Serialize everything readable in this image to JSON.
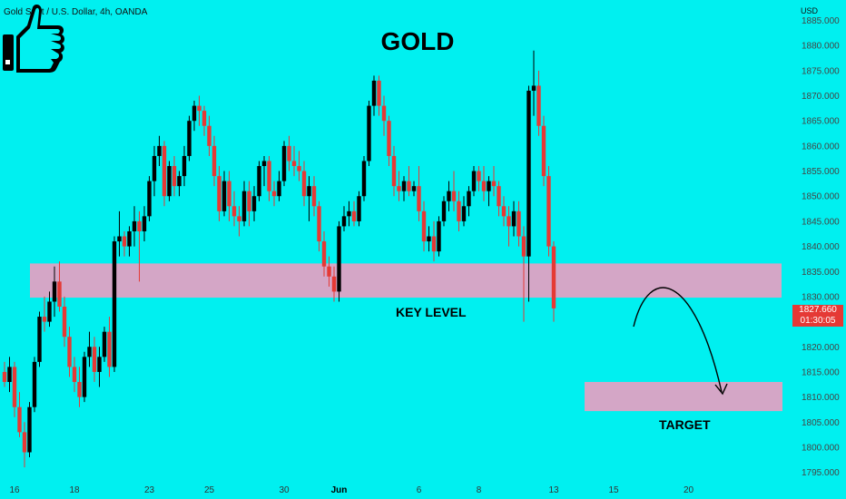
{
  "header": {
    "symbol_text": "Gold Spot / U.S. Dollar, 4h, OANDA",
    "currency": "USD",
    "main_title": "GOLD"
  },
  "price_tag": {
    "price": "1827.660",
    "countdown": "01:30:05"
  },
  "annotations": {
    "key_level": "KEY LEVEL",
    "target": "TARGET"
  },
  "icons": {
    "thumb": "thumbs-up-icon"
  },
  "colors": {
    "background": "#00f0f0",
    "bull": "#000000",
    "bear": "#e53935",
    "zone": "#d4a6c6"
  },
  "chart_data": {
    "type": "candlestick",
    "symbol": "Gold Spot / U.S. Dollar",
    "timeframe": "4h",
    "source": "OANDA",
    "title": "GOLD",
    "ylim": [
      1794,
      1886
    ],
    "y_ticks": [
      1885,
      1880,
      1875,
      1870,
      1865,
      1860,
      1855,
      1850,
      1845,
      1840,
      1835,
      1830,
      1825,
      1820,
      1815,
      1810,
      1805,
      1800,
      1795
    ],
    "x_ticks": [
      {
        "label": "16",
        "bar": 2
      },
      {
        "label": "18",
        "bar": 14
      },
      {
        "label": "23",
        "bar": 29
      },
      {
        "label": "25",
        "bar": 41
      },
      {
        "label": "30",
        "bar": 56
      },
      {
        "label": "Jun",
        "bar": 67,
        "bold": true
      },
      {
        "label": "6",
        "bar": 83
      },
      {
        "label": "8",
        "bar": 95
      },
      {
        "label": "13",
        "bar": 110
      },
      {
        "label": "15",
        "bar": 122
      },
      {
        "label": "20",
        "bar": 137
      }
    ],
    "zones": [
      {
        "name": "KEY LEVEL",
        "from": 1829.8,
        "to": 1836.6
      },
      {
        "name": "TARGET",
        "from": 1807.2,
        "to": 1813.0
      }
    ],
    "last_price": 1827.66,
    "candles": [
      [
        1815,
        1817,
        1812,
        1813
      ],
      [
        1813,
        1818,
        1811,
        1816
      ],
      [
        1816,
        1817,
        1806,
        1808
      ],
      [
        1808,
        1811,
        1802,
        1803
      ],
      [
        1803,
        1805,
        1796,
        1799
      ],
      [
        1799,
        1809,
        1798,
        1808
      ],
      [
        1808,
        1818,
        1807,
        1817
      ],
      [
        1817,
        1827,
        1816,
        1826
      ],
      [
        1826,
        1830,
        1823,
        1825
      ],
      [
        1825,
        1831,
        1824,
        1829
      ],
      [
        1829,
        1836,
        1826,
        1833
      ],
      [
        1833,
        1837,
        1827,
        1828
      ],
      [
        1828,
        1830,
        1820,
        1822
      ],
      [
        1822,
        1824,
        1814,
        1816
      ],
      [
        1816,
        1818,
        1811,
        1813
      ],
      [
        1813,
        1816,
        1808,
        1810
      ],
      [
        1810,
        1819,
        1809,
        1818
      ],
      [
        1818,
        1823,
        1816,
        1820
      ],
      [
        1820,
        1822,
        1813,
        1815
      ],
      [
        1815,
        1820,
        1812,
        1818
      ],
      [
        1818,
        1824,
        1817,
        1823
      ],
      [
        1823,
        1826,
        1814,
        1816
      ],
      [
        1816,
        1842,
        1815,
        1841
      ],
      [
        1841,
        1847,
        1838,
        1842
      ],
      [
        1842,
        1843,
        1838,
        1840
      ],
      [
        1840,
        1844,
        1838,
        1843
      ],
      [
        1843,
        1848,
        1840,
        1845
      ],
      [
        1845,
        1847,
        1833,
        1843
      ],
      [
        1843,
        1848,
        1841,
        1846
      ],
      [
        1846,
        1854,
        1845,
        1853
      ],
      [
        1853,
        1860,
        1850,
        1858
      ],
      [
        1858,
        1862,
        1856,
        1860
      ],
      [
        1860,
        1861,
        1848,
        1850
      ],
      [
        1850,
        1857,
        1849,
        1856
      ],
      [
        1856,
        1858,
        1850,
        1852
      ],
      [
        1852,
        1855,
        1850,
        1854
      ],
      [
        1854,
        1860,
        1852,
        1858
      ],
      [
        1858,
        1866,
        1857,
        1865
      ],
      [
        1865,
        1869,
        1863,
        1868
      ],
      [
        1868,
        1870,
        1864,
        1867
      ],
      [
        1867,
        1868,
        1862,
        1864
      ],
      [
        1864,
        1866,
        1858,
        1860
      ],
      [
        1860,
        1862,
        1852,
        1854
      ],
      [
        1854,
        1856,
        1845,
        1847
      ],
      [
        1847,
        1855,
        1846,
        1853
      ],
      [
        1853,
        1855,
        1845,
        1848
      ],
      [
        1848,
        1851,
        1844,
        1846
      ],
      [
        1846,
        1848,
        1842,
        1845
      ],
      [
        1845,
        1853,
        1844,
        1851
      ],
      [
        1851,
        1853,
        1844,
        1847
      ],
      [
        1847,
        1852,
        1845,
        1850
      ],
      [
        1850,
        1857,
        1849,
        1856
      ],
      [
        1856,
        1858,
        1852,
        1857
      ],
      [
        1857,
        1858,
        1849,
        1851
      ],
      [
        1851,
        1853,
        1848,
        1850
      ],
      [
        1850,
        1855,
        1849,
        1853
      ],
      [
        1853,
        1861,
        1852,
        1860
      ],
      [
        1860,
        1862,
        1855,
        1857
      ],
      [
        1857,
        1860,
        1854,
        1856
      ],
      [
        1856,
        1859,
        1853,
        1855
      ],
      [
        1855,
        1857,
        1848,
        1850
      ],
      [
        1850,
        1854,
        1845,
        1852
      ],
      [
        1852,
        1854,
        1846,
        1848
      ],
      [
        1848,
        1849,
        1839,
        1841
      ],
      [
        1841,
        1843,
        1834,
        1836
      ],
      [
        1836,
        1838,
        1832,
        1834
      ],
      [
        1834,
        1836,
        1829,
        1831
      ],
      [
        1831,
        1845,
        1829,
        1844
      ],
      [
        1844,
        1848,
        1843,
        1846
      ],
      [
        1846,
        1849,
        1844,
        1847
      ],
      [
        1847,
        1849,
        1844,
        1845
      ],
      [
        1845,
        1851,
        1844,
        1850
      ],
      [
        1850,
        1858,
        1849,
        1857
      ],
      [
        1857,
        1869,
        1856,
        1868
      ],
      [
        1868,
        1874,
        1866,
        1873
      ],
      [
        1873,
        1874,
        1866,
        1868
      ],
      [
        1868,
        1870,
        1862,
        1865
      ],
      [
        1865,
        1866,
        1856,
        1858
      ],
      [
        1858,
        1860,
        1850,
        1852
      ],
      [
        1852,
        1855,
        1849,
        1851
      ],
      [
        1851,
        1854,
        1849,
        1853
      ],
      [
        1853,
        1856,
        1850,
        1851
      ],
      [
        1851,
        1853,
        1850,
        1852
      ],
      [
        1852,
        1856,
        1845,
        1847
      ],
      [
        1847,
        1849,
        1839,
        1841
      ],
      [
        1841,
        1844,
        1839,
        1842
      ],
      [
        1842,
        1845,
        1837,
        1839
      ],
      [
        1839,
        1846,
        1838,
        1845
      ],
      [
        1845,
        1850,
        1844,
        1849
      ],
      [
        1849,
        1853,
        1847,
        1851
      ],
      [
        1851,
        1855,
        1847,
        1849
      ],
      [
        1849,
        1851,
        1843,
        1845
      ],
      [
        1845,
        1850,
        1844,
        1848
      ],
      [
        1848,
        1852,
        1846,
        1851
      ],
      [
        1851,
        1856,
        1850,
        1855
      ],
      [
        1855,
        1856,
        1851,
        1853
      ],
      [
        1853,
        1856,
        1849,
        1851
      ],
      [
        1851,
        1854,
        1848,
        1853
      ],
      [
        1853,
        1856,
        1850,
        1852
      ],
      [
        1852,
        1853,
        1846,
        1848
      ],
      [
        1848,
        1850,
        1844,
        1846
      ],
      [
        1846,
        1848,
        1840,
        1844
      ],
      [
        1844,
        1849,
        1842,
        1847
      ],
      [
        1847,
        1849,
        1840,
        1842
      ],
      [
        1842,
        1844,
        1825,
        1838
      ],
      [
        1838,
        1872,
        1829,
        1871
      ],
      [
        1871,
        1879,
        1866,
        1872
      ],
      [
        1872,
        1875,
        1862,
        1864
      ],
      [
        1864,
        1866,
        1852,
        1854
      ],
      [
        1854,
        1856,
        1838,
        1840
      ],
      [
        1840,
        1841,
        1825,
        1827.66
      ]
    ]
  }
}
